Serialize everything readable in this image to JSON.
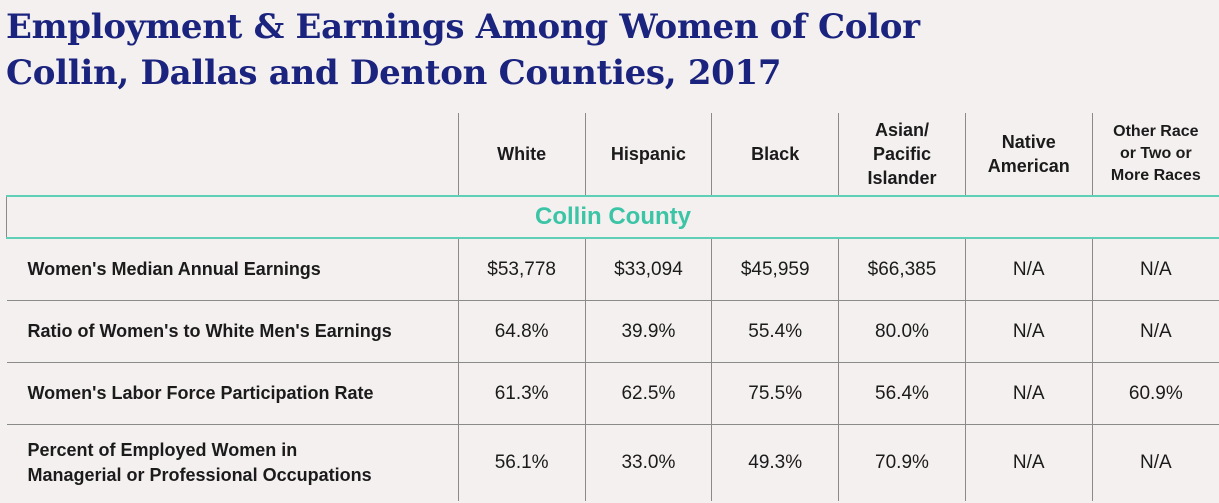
{
  "title": {
    "line1": "Employment & Earnings Among Women of Color",
    "line2": "Collin, Dallas and Denton Counties, 2017"
  },
  "columns": [
    {
      "lines": [
        "White"
      ]
    },
    {
      "lines": [
        "Hispanic"
      ]
    },
    {
      "lines": [
        "Black"
      ]
    },
    {
      "lines": [
        "Asian/",
        "Pacific",
        "Islander"
      ]
    },
    {
      "lines": [
        "Native",
        "American"
      ]
    },
    {
      "lines": [
        "Other Race",
        "or Two or",
        "More Races"
      ]
    }
  ],
  "section": "Collin County",
  "rows": [
    {
      "label": [
        "Women's Median Annual Earnings"
      ],
      "values": [
        "$53,778",
        "$33,094",
        "$45,959",
        "$66,385",
        "N/A",
        "N/A"
      ]
    },
    {
      "label": [
        "Ratio of Women's to White Men's Earnings"
      ],
      "values": [
        "64.8%",
        "39.9%",
        "55.4%",
        "80.0%",
        "N/A",
        "N/A"
      ]
    },
    {
      "label": [
        "Women's Labor Force Participation Rate"
      ],
      "values": [
        "61.3%",
        "62.5%",
        "75.5%",
        "56.4%",
        "N/A",
        "60.9%"
      ]
    },
    {
      "label": [
        "Percent of Employed Women in",
        "Managerial or Professional Occupations"
      ],
      "values": [
        "56.1%",
        "33.0%",
        "49.3%",
        "70.9%",
        "N/A",
        "N/A"
      ]
    }
  ],
  "colors": {
    "title": "#1a237e",
    "section": "#3cc4a6",
    "rule": "#5fcfb8",
    "background": "#f4f0ef"
  }
}
